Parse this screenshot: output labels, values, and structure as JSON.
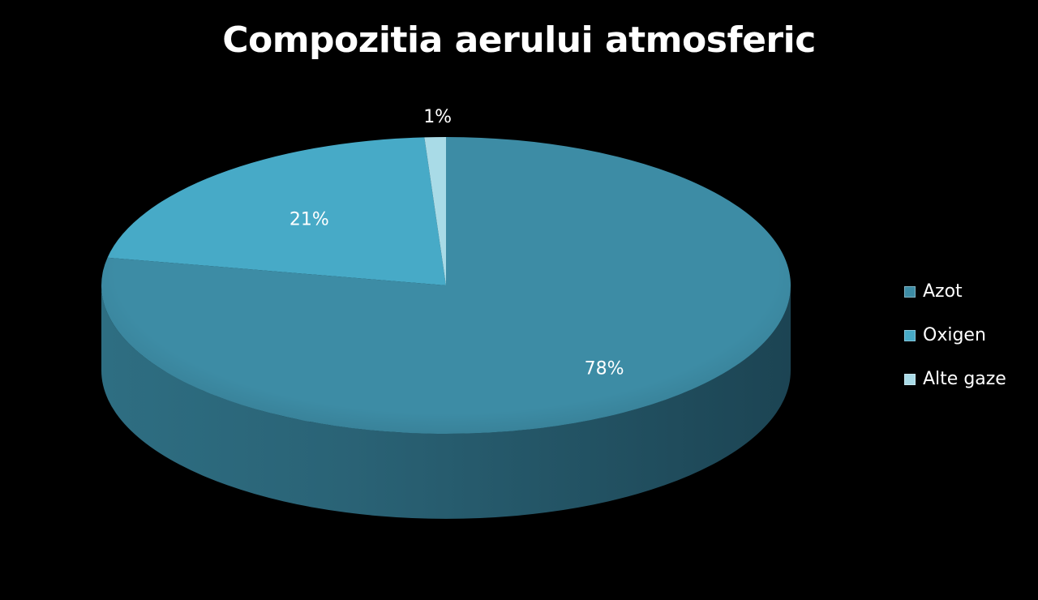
{
  "chart_data": {
    "type": "pie",
    "title": "Compozitia aerului atmosferic",
    "legend_position": "right",
    "slices": [
      {
        "name": "Azot",
        "value": 78,
        "label": "78%",
        "color": "#3d8ca5"
      },
      {
        "name": "Oxigen",
        "value": 21,
        "label": "21%",
        "color": "#47aac7"
      },
      {
        "name": "Alte gaze",
        "value": 1,
        "label": "1%",
        "color": "#a9dbe7"
      }
    ]
  },
  "colors": {
    "background": "#000000",
    "text": "#ffffff"
  }
}
